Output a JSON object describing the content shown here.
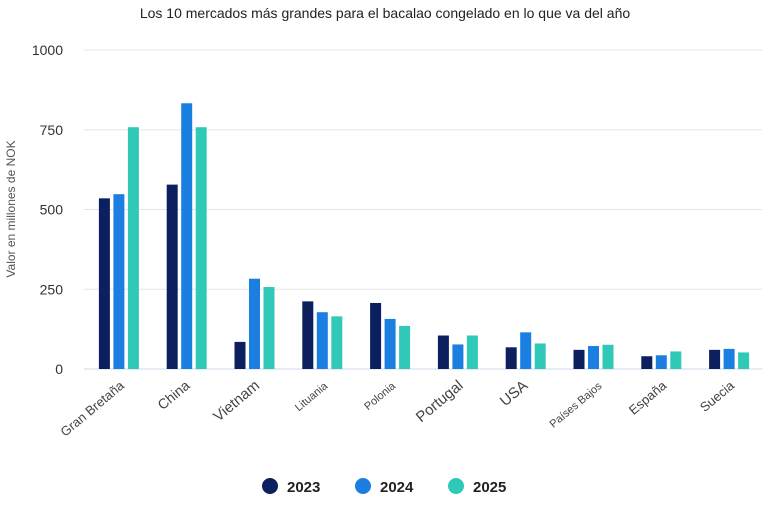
{
  "chart_data": {
    "type": "bar",
    "title": "Los 10 mercados más grandes para el bacalao congelado en lo que va del año",
    "xlabel": "",
    "ylabel": "Valor en millones de NOK",
    "ylim": [
      0,
      1000
    ],
    "yticks": [
      0,
      250,
      500,
      750,
      1000
    ],
    "grid": true,
    "legend_position": "bottom-center",
    "categories": [
      "Gran Bretaña",
      "China",
      "Vietnam",
      "Lituania",
      "Polonia",
      "Portugal",
      "USA",
      "Países Bajos",
      "España",
      "Suecia"
    ],
    "series": [
      {
        "name": "2023",
        "color": "#0c1f5e",
        "values": [
          535,
          578,
          85,
          212,
          207,
          105,
          68,
          60,
          40,
          60
        ]
      },
      {
        "name": "2024",
        "color": "#1a7fe0",
        "values": [
          548,
          833,
          283,
          178,
          157,
          77,
          115,
          72,
          43,
          63
        ]
      },
      {
        "name": "2025",
        "color": "#30c9b8",
        "values": [
          758,
          758,
          257,
          165,
          135,
          105,
          80,
          76,
          55,
          52
        ]
      }
    ]
  }
}
